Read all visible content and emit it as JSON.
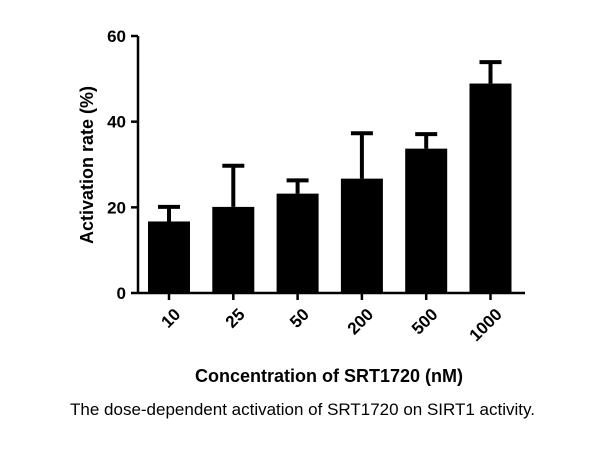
{
  "chart_data": {
    "type": "bar",
    "categories": [
      "10",
      "25",
      "50",
      "200",
      "500",
      "1000"
    ],
    "values": [
      16.7,
      20.1,
      23.2,
      26.7,
      33.7,
      48.9
    ],
    "error_upper": [
      20.1,
      29.7,
      26.3,
      37.3,
      37.1,
      53.9
    ],
    "xlabel": "Concentration of SRT1720 (nM)",
    "ylabel": "Activation rate (%)",
    "ylim": [
      0,
      60
    ],
    "yticks": [
      0,
      20,
      40,
      60
    ],
    "grid": false,
    "bar_color": "#000000"
  },
  "caption": "The dose-dependent activation of SRT1720 on SIRT1 activity."
}
